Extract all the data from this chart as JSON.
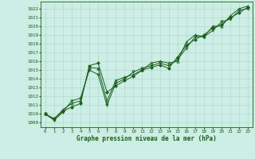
{
  "title": "Graphe pression niveau de la mer (hPa)",
  "background_color": "#cceee4",
  "line_color": "#1a5c1a",
  "marker_color": "#1a5c1a",
  "grid_color": "#a8d8cc",
  "xlim": [
    -0.5,
    23.5
  ],
  "ylim": [
    1008.5,
    1022.8
  ],
  "xticks": [
    0,
    1,
    2,
    3,
    4,
    5,
    6,
    7,
    8,
    9,
    10,
    11,
    12,
    13,
    14,
    15,
    16,
    17,
    18,
    19,
    20,
    21,
    22,
    23
  ],
  "yticks": [
    1009,
    1010,
    1011,
    1012,
    1013,
    1014,
    1015,
    1016,
    1017,
    1018,
    1019,
    1020,
    1021,
    1022
  ],
  "series1_x": [
    0,
    1,
    2,
    3,
    4,
    5,
    6,
    7,
    8,
    9,
    10,
    11,
    12,
    13,
    14,
    15,
    16,
    17,
    18,
    19,
    20,
    21,
    22,
    23
  ],
  "series1_y": [
    1010.0,
    1009.5,
    1010.3,
    1010.8,
    1011.2,
    1015.5,
    1015.8,
    1012.5,
    1013.2,
    1013.8,
    1014.3,
    1015.0,
    1015.3,
    1015.6,
    1015.2,
    1016.5,
    1017.8,
    1018.5,
    1019.0,
    1019.8,
    1020.2,
    1021.0,
    1021.5,
    1022.2
  ],
  "series2_x": [
    0,
    1,
    2,
    3,
    4,
    5,
    6,
    7,
    8,
    9,
    10,
    11,
    12,
    13,
    14,
    15,
    16,
    17,
    18,
    19,
    20,
    21,
    22,
    23
  ],
  "series2_y": [
    1010.0,
    1009.3,
    1010.2,
    1011.5,
    1011.8,
    1015.0,
    1014.5,
    1011.0,
    1013.5,
    1014.0,
    1014.8,
    1015.2,
    1015.5,
    1015.8,
    1015.5,
    1016.2,
    1017.5,
    1018.8,
    1018.8,
    1019.5,
    1020.5,
    1020.8,
    1021.8,
    1022.0
  ],
  "series3_x": [
    0,
    1,
    2,
    3,
    4,
    5,
    6,
    7,
    8,
    9,
    10,
    11,
    12,
    13,
    14,
    15,
    16,
    17,
    18,
    19,
    20,
    21,
    22,
    23
  ],
  "series3_y": [
    1010.0,
    1009.4,
    1010.5,
    1011.2,
    1011.5,
    1015.3,
    1015.2,
    1011.5,
    1013.8,
    1014.2,
    1014.5,
    1015.0,
    1015.8,
    1016.0,
    1015.8,
    1016.0,
    1018.2,
    1019.0,
    1018.8,
    1020.0,
    1020.0,
    1021.2,
    1022.0,
    1022.3
  ],
  "xlabel_fontsize": 5.5,
  "tick_fontsize": 4.2,
  "linewidth": 0.7,
  "markersize": 2.0
}
